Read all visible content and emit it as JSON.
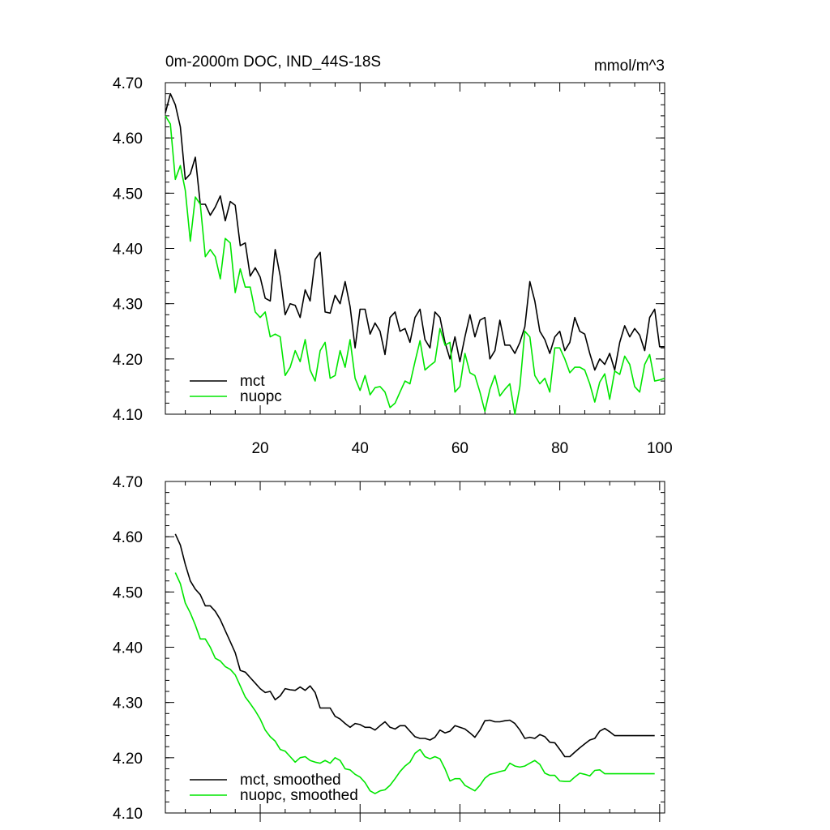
{
  "chart_data": [
    {
      "type": "line",
      "title": "0m-2000m DOC, IND_44S-18S",
      "units": "mmol/m^3",
      "xlabel": "",
      "ylabel": "",
      "xlim": [
        1,
        101
      ],
      "ylim": [
        4.1,
        4.7
      ],
      "xticks": [
        20,
        40,
        60,
        80,
        100
      ],
      "xtick_labels": [
        "20",
        "40",
        "60",
        "80",
        "100"
      ],
      "yticks": [
        4.1,
        4.2,
        4.3,
        4.4,
        4.5,
        4.6,
        4.7
      ],
      "ytick_labels": [
        "4.10",
        "4.20",
        "4.30",
        "4.40",
        "4.50",
        "4.60",
        "4.70"
      ],
      "legend_position": "bottom-left",
      "series": [
        {
          "name": "mct",
          "color": "#000000",
          "x": [
            1,
            2,
            3,
            4,
            5,
            6,
            7,
            8,
            9,
            10,
            11,
            12,
            13,
            14,
            15,
            16,
            17,
            18,
            19,
            20,
            21,
            22,
            23,
            24,
            25,
            26,
            27,
            28,
            29,
            30,
            31,
            32,
            33,
            34,
            35,
            36,
            37,
            38,
            39,
            40,
            41,
            42,
            43,
            44,
            45,
            46,
            47,
            48,
            49,
            50,
            51,
            52,
            53,
            54,
            55,
            56,
            57,
            58,
            59,
            60,
            61,
            62,
            63,
            64,
            65,
            66,
            67,
            68,
            69,
            70,
            71,
            72,
            73,
            74,
            75,
            76,
            77,
            78,
            79,
            80,
            81,
            82,
            83,
            84,
            85,
            86,
            87,
            88,
            89,
            90,
            91,
            92,
            93,
            94,
            95,
            96,
            97,
            98,
            99,
            100,
            101
          ],
          "values": [
            4.645,
            4.68,
            4.66,
            4.62,
            4.525,
            4.535,
            4.565,
            4.48,
            4.48,
            4.46,
            4.475,
            4.495,
            4.45,
            4.485,
            4.478,
            4.405,
            4.41,
            4.35,
            4.365,
            4.348,
            4.31,
            4.305,
            4.398,
            4.35,
            4.28,
            4.3,
            4.297,
            4.275,
            4.325,
            4.305,
            4.38,
            4.393,
            4.285,
            4.283,
            4.315,
            4.3,
            4.34,
            4.295,
            4.22,
            4.29,
            4.29,
            4.245,
            4.265,
            4.25,
            4.208,
            4.275,
            4.285,
            4.25,
            4.255,
            4.23,
            4.275,
            4.29,
            4.235,
            4.22,
            4.285,
            4.275,
            4.23,
            4.2,
            4.24,
            4.195,
            4.24,
            4.28,
            4.24,
            4.27,
            4.275,
            4.2,
            4.215,
            4.27,
            4.225,
            4.225,
            4.21,
            4.23,
            4.258,
            4.34,
            4.305,
            4.25,
            4.235,
            4.21,
            4.24,
            4.25,
            4.215,
            4.23,
            4.275,
            4.25,
            4.245,
            4.21,
            4.18,
            4.2,
            4.19,
            4.21,
            4.18,
            4.23,
            4.26,
            4.24,
            4.255,
            4.243,
            4.215,
            4.275,
            4.29,
            4.222,
            4.222
          ]
        },
        {
          "name": "nuopc",
          "color": "#00e600",
          "x": [
            1,
            2,
            3,
            4,
            5,
            6,
            7,
            8,
            9,
            10,
            11,
            12,
            13,
            14,
            15,
            16,
            17,
            18,
            19,
            20,
            21,
            22,
            23,
            24,
            25,
            26,
            27,
            28,
            29,
            30,
            31,
            32,
            33,
            34,
            35,
            36,
            37,
            38,
            39,
            40,
            41,
            42,
            43,
            44,
            45,
            46,
            47,
            48,
            49,
            50,
            51,
            52,
            53,
            54,
            55,
            56,
            57,
            58,
            59,
            60,
            61,
            62,
            63,
            64,
            65,
            66,
            67,
            68,
            69,
            70,
            71,
            72,
            73,
            74,
            75,
            76,
            77,
            78,
            79,
            80,
            81,
            82,
            83,
            84,
            85,
            86,
            87,
            88,
            89,
            90,
            91,
            92,
            93,
            94,
            95,
            96,
            97,
            98,
            99,
            100,
            101
          ],
          "values": [
            4.64,
            4.625,
            4.525,
            4.55,
            4.505,
            4.413,
            4.493,
            4.48,
            4.385,
            4.398,
            4.385,
            4.345,
            4.418,
            4.41,
            4.32,
            4.363,
            4.33,
            4.33,
            4.285,
            4.275,
            4.285,
            4.24,
            4.245,
            4.24,
            4.17,
            4.185,
            4.215,
            4.195,
            4.235,
            4.18,
            4.16,
            4.215,
            4.23,
            4.165,
            4.17,
            4.215,
            4.185,
            4.235,
            4.165,
            4.143,
            4.17,
            4.135,
            4.148,
            4.15,
            4.14,
            4.112,
            4.12,
            4.14,
            4.16,
            4.155,
            4.195,
            4.233,
            4.18,
            4.188,
            4.195,
            4.255,
            4.225,
            4.23,
            4.14,
            4.15,
            4.21,
            4.175,
            4.17,
            4.14,
            4.105,
            4.145,
            4.17,
            4.133,
            4.145,
            4.155,
            4.1,
            4.15,
            4.25,
            4.24,
            4.17,
            4.155,
            4.165,
            4.14,
            4.22,
            4.22,
            4.2,
            4.175,
            4.185,
            4.185,
            4.18,
            4.155,
            4.122,
            4.158,
            4.173,
            4.127,
            4.178,
            4.172,
            4.205,
            4.19,
            4.15,
            4.14,
            4.19,
            4.208,
            4.16,
            4.162,
            4.165
          ]
        }
      ]
    },
    {
      "type": "line",
      "title": "",
      "xlabel": "",
      "ylabel": "",
      "xlim": [
        1,
        101
      ],
      "ylim": [
        4.1,
        4.7
      ],
      "yticks": [
        4.1,
        4.2,
        4.3,
        4.4,
        4.5,
        4.6,
        4.7
      ],
      "ytick_labels": [
        "4.10",
        "4.20",
        "4.30",
        "4.40",
        "4.50",
        "4.60",
        "4.70"
      ],
      "legend_position": "bottom-left",
      "series": [
        {
          "name": "mct, smoothed",
          "color": "#000000",
          "x": [
            3,
            4,
            5,
            6,
            7,
            8,
            9,
            10,
            11,
            12,
            13,
            14,
            15,
            16,
            17,
            18,
            19,
            20,
            21,
            22,
            23,
            24,
            25,
            26,
            27,
            28,
            29,
            30,
            31,
            32,
            33,
            34,
            35,
            36,
            37,
            38,
            39,
            40,
            41,
            42,
            43,
            44,
            45,
            46,
            47,
            48,
            49,
            50,
            51,
            52,
            53,
            54,
            55,
            56,
            57,
            58,
            59,
            60,
            61,
            62,
            63,
            64,
            65,
            66,
            67,
            68,
            69,
            70,
            71,
            72,
            73,
            74,
            75,
            76,
            77,
            78,
            79,
            80,
            81,
            82,
            83,
            84,
            85,
            86,
            87,
            88,
            89,
            90,
            91,
            92,
            93,
            94,
            95,
            96,
            97,
            98,
            99
          ],
          "values": [
            4.605,
            4.585,
            4.55,
            4.52,
            4.505,
            4.495,
            4.475,
            4.475,
            4.465,
            4.45,
            4.43,
            4.41,
            4.39,
            4.358,
            4.355,
            4.345,
            4.335,
            4.325,
            4.318,
            4.32,
            4.305,
            4.312,
            4.325,
            4.323,
            4.322,
            4.328,
            4.322,
            4.33,
            4.318,
            4.29,
            4.29,
            4.29,
            4.275,
            4.27,
            4.262,
            4.255,
            4.262,
            4.26,
            4.255,
            4.255,
            4.25,
            4.258,
            4.265,
            4.255,
            4.252,
            4.258,
            4.258,
            4.248,
            4.238,
            4.235,
            4.235,
            4.232,
            4.237,
            4.25,
            4.245,
            4.248,
            4.258,
            4.255,
            4.252,
            4.245,
            4.237,
            4.25,
            4.267,
            4.268,
            4.265,
            4.265,
            4.267,
            4.268,
            4.262,
            4.25,
            4.235,
            4.237,
            4.235,
            4.242,
            4.238,
            4.228,
            4.227,
            4.215,
            4.202,
            4.202,
            4.21,
            4.218,
            4.225,
            4.232,
            4.235,
            4.248,
            4.253,
            4.247,
            4.24,
            4.24,
            4.24,
            4.24,
            4.24,
            4.24,
            4.24,
            4.24,
            4.24
          ]
        },
        {
          "name": "nuopc, smoothed",
          "color": "#00e600",
          "x": [
            3,
            4,
            5,
            6,
            7,
            8,
            9,
            10,
            11,
            12,
            13,
            14,
            15,
            16,
            17,
            18,
            19,
            20,
            21,
            22,
            23,
            24,
            25,
            26,
            27,
            28,
            29,
            30,
            31,
            32,
            33,
            34,
            35,
            36,
            37,
            38,
            39,
            40,
            41,
            42,
            43,
            44,
            45,
            46,
            47,
            48,
            49,
            50,
            51,
            52,
            53,
            54,
            55,
            56,
            57,
            58,
            59,
            60,
            61,
            62,
            63,
            64,
            65,
            66,
            67,
            68,
            69,
            70,
            71,
            72,
            73,
            74,
            75,
            76,
            77,
            78,
            79,
            80,
            81,
            82,
            83,
            84,
            85,
            86,
            87,
            88,
            89,
            90,
            91,
            92,
            93,
            94,
            95,
            96,
            97,
            98,
            99
          ],
          "values": [
            4.535,
            4.515,
            4.48,
            4.462,
            4.44,
            4.415,
            4.415,
            4.4,
            4.38,
            4.375,
            4.365,
            4.36,
            4.35,
            4.33,
            4.31,
            4.298,
            4.285,
            4.27,
            4.25,
            4.238,
            4.23,
            4.215,
            4.212,
            4.202,
            4.192,
            4.2,
            4.202,
            4.195,
            4.192,
            4.19,
            4.195,
            4.19,
            4.2,
            4.195,
            4.18,
            4.178,
            4.17,
            4.165,
            4.155,
            4.14,
            4.135,
            4.14,
            4.142,
            4.15,
            4.162,
            4.175,
            4.185,
            4.192,
            4.208,
            4.215,
            4.202,
            4.198,
            4.202,
            4.198,
            4.18,
            4.158,
            4.162,
            4.162,
            4.15,
            4.145,
            4.14,
            4.15,
            4.163,
            4.17,
            4.172,
            4.175,
            4.177,
            4.19,
            4.185,
            4.183,
            4.185,
            4.19,
            4.195,
            4.188,
            4.172,
            4.168,
            4.168,
            4.158,
            4.157,
            4.157,
            4.165,
            4.172,
            4.17,
            4.167,
            4.177,
            4.178,
            4.171,
            4.171,
            4.171,
            4.171,
            4.171,
            4.171,
            4.171,
            4.171,
            4.171,
            4.171,
            4.171
          ]
        }
      ]
    }
  ]
}
